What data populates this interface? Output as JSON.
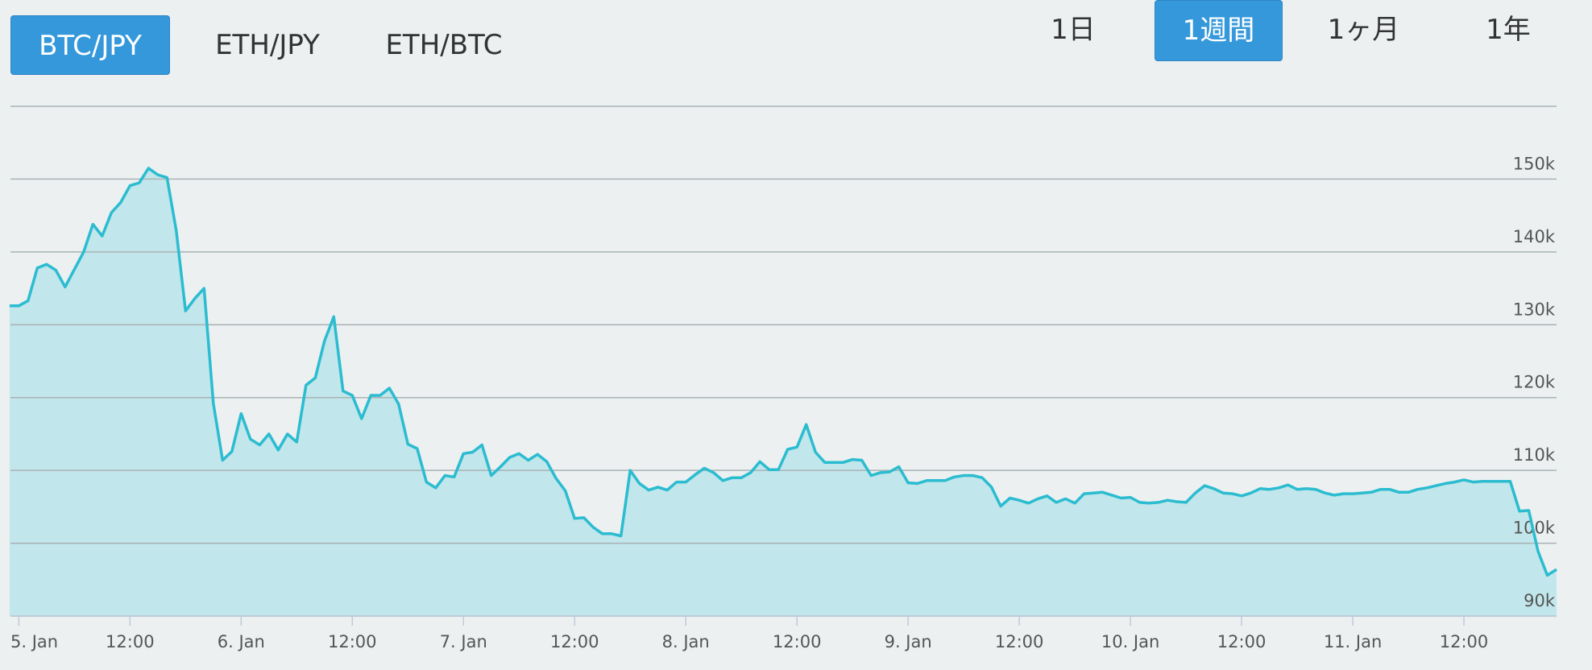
{
  "pairs": [
    "BTC/JPY",
    "ETH/JPY",
    "ETH/BTC"
  ],
  "periods": [
    "1日",
    "1週間",
    "1ヶ月",
    "1年"
  ],
  "chart_data": {
    "type": "area",
    "color": "#2bbcd0",
    "fill": "#c1e6eb",
    "grid": true,
    "x": [
      -1,
      0,
      1,
      2,
      3,
      4,
      5,
      6,
      7,
      8,
      9,
      10,
      11,
      12,
      13,
      14,
      15,
      16,
      17,
      18,
      19,
      20,
      21,
      22,
      23,
      24,
      25,
      26,
      27,
      28,
      29,
      30,
      31,
      32,
      33,
      34,
      35,
      36,
      37,
      38,
      39,
      40,
      41,
      42,
      43,
      44,
      45,
      46,
      47,
      48,
      49,
      50,
      51,
      52,
      53,
      54,
      55,
      56,
      57,
      58,
      59,
      60,
      61,
      62,
      63,
      64,
      65,
      66,
      67,
      68,
      69,
      70,
      71,
      72,
      73,
      74,
      75,
      76,
      77,
      78,
      79,
      80,
      81,
      82,
      83,
      84,
      85,
      86,
      87,
      88,
      89,
      90,
      91,
      92,
      93,
      94,
      95,
      96,
      97,
      98,
      99,
      100,
      101,
      102,
      103,
      104,
      105,
      106,
      107,
      108,
      109,
      110,
      111,
      112,
      113,
      114,
      115,
      116,
      117,
      118,
      119,
      120,
      121,
      122,
      123,
      124,
      125,
      126,
      127,
      128,
      129,
      130,
      131,
      132,
      133,
      134,
      135,
      136,
      137,
      138,
      139,
      140,
      141,
      142,
      143,
      144,
      145,
      146,
      147,
      148,
      149,
      150,
      151,
      152,
      153,
      154,
      155,
      156,
      157,
      158,
      159,
      160,
      161,
      162,
      163,
      164,
      165,
      166
    ],
    "values": [
      132600,
      132600,
      133300,
      137800,
      138300,
      137500,
      135200,
      137600,
      140000,
      143800,
      142200,
      145400,
      146800,
      149100,
      149500,
      151500,
      150600,
      150200,
      142900,
      131900,
      133600,
      135000,
      119200,
      111400,
      112600,
      117800,
      114300,
      113500,
      115000,
      112800,
      115000,
      113900,
      121700,
      122700,
      127800,
      131100,
      120900,
      120300,
      117100,
      120300,
      120300,
      121300,
      119100,
      113600,
      113000,
      108400,
      107600,
      109300,
      109100,
      112300,
      112500,
      113500,
      109300,
      110500,
      111800,
      112300,
      111400,
      112200,
      111200,
      108900,
      107200,
      103400,
      103500,
      102200,
      101300,
      101300,
      101000,
      110000,
      108200,
      107300,
      107700,
      107300,
      108400,
      108400,
      109400,
      110300,
      109700,
      108600,
      109000,
      109000,
      109700,
      111200,
      110100,
      110100,
      112900,
      113200,
      116300,
      112500,
      111100,
      111100,
      111100,
      111500,
      111400,
      109300,
      109700,
      109800,
      110500,
      108300,
      108200,
      108600,
      108600,
      108600,
      109100,
      109300,
      109300,
      109000,
      107700,
      105100,
      106200,
      105900,
      105500,
      106100,
      106500,
      105600,
      106100,
      105500,
      106800,
      106900,
      107000,
      106600,
      106200,
      106300,
      105600,
      105500,
      105600,
      105900,
      105700,
      105600,
      106900,
      107900,
      107500,
      106900,
      106800,
      106500,
      106900,
      107500,
      107400,
      107600,
      108000,
      107400,
      107500,
      107400,
      106900,
      106600,
      106800,
      106800,
      106900,
      107000,
      107400,
      107400,
      107000,
      107000,
      107400,
      107600,
      107900,
      108200,
      108400,
      108700,
      108400,
      108500,
      108500,
      108500,
      108500,
      104400,
      104500,
      98900,
      95600,
      96400
    ],
    "xlim": [
      -0.9,
      166
    ],
    "ylim": [
      90000,
      160000
    ],
    "yticks": [
      {
        "value": 90000,
        "label": "90k"
      },
      {
        "value": 100000,
        "label": "100k"
      },
      {
        "value": 110000,
        "label": "110k"
      },
      {
        "value": 120000,
        "label": "120k"
      },
      {
        "value": 130000,
        "label": "130k"
      },
      {
        "value": 140000,
        "label": "140k"
      },
      {
        "value": 150000,
        "label": "150k"
      }
    ],
    "xticks": [
      {
        "value": 0,
        "label": "5. Jan"
      },
      {
        "value": 12,
        "label": "12:00"
      },
      {
        "value": 24,
        "label": "6. Jan"
      },
      {
        "value": 36,
        "label": "12:00"
      },
      {
        "value": 48,
        "label": "7. Jan"
      },
      {
        "value": 60,
        "label": "12:00"
      },
      {
        "value": 72,
        "label": "8. Jan"
      },
      {
        "value": 84,
        "label": "12:00"
      },
      {
        "value": 96,
        "label": "9. Jan"
      },
      {
        "value": 108,
        "label": "12:00"
      },
      {
        "value": 120,
        "label": "10. Jan"
      },
      {
        "value": 132,
        "label": "12:00"
      },
      {
        "value": 144,
        "label": "11. Jan"
      },
      {
        "value": 156,
        "label": "12:00"
      }
    ]
  }
}
